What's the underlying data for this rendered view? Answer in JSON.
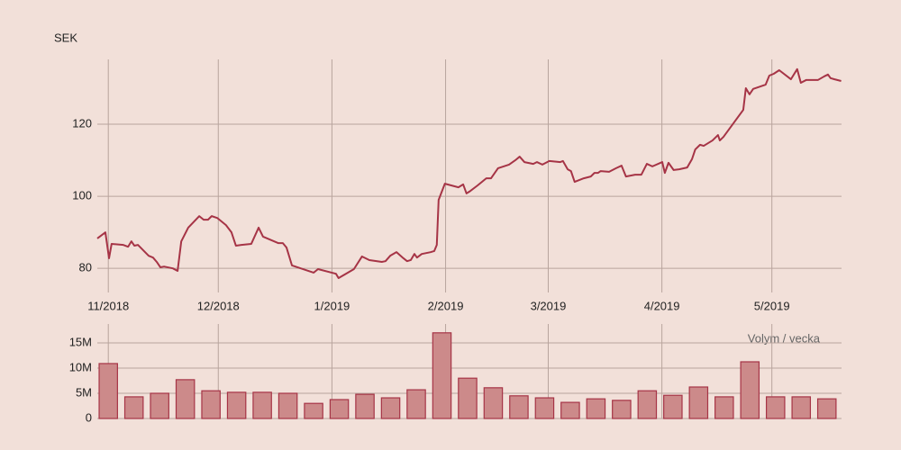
{
  "chart_data": [
    {
      "type": "line",
      "title": "SEK",
      "color": "#a63446",
      "grid": true,
      "xlim": [
        0,
        203
      ],
      "ylim": [
        73.3,
        138
      ],
      "xticks": [
        {
          "value": 3,
          "label": "11/2018"
        },
        {
          "value": 33,
          "label": "12/2018"
        },
        {
          "value": 64,
          "label": "1/2019"
        },
        {
          "value": 95,
          "label": "2/2019"
        },
        {
          "value": 123,
          "label": "3/2019"
        },
        {
          "value": 154,
          "label": "4/2019"
        },
        {
          "value": 184,
          "label": "5/2019"
        }
      ],
      "yticks": [
        80,
        100,
        120
      ],
      "x": [
        0,
        2.2,
        3.2,
        3.9,
        7.1,
        8.4,
        9.3,
        10.1,
        11.1,
        14,
        15.2,
        16.2,
        17.2,
        18.2,
        20.6,
        21.9,
        22.9,
        24.8,
        27.8,
        29,
        30.2,
        31.2,
        32.7,
        35.1,
        36.6,
        37.8,
        39.3,
        42,
        44,
        45.2,
        49.4,
        50.6,
        51.6,
        53.1,
        59,
        60.2,
        65.1,
        65.8,
        70,
        72.2,
        74.2,
        77.6,
        78.6,
        79.9,
        81.6,
        83.5,
        84.5,
        85.5,
        86.5,
        87.2,
        88.5,
        90.9,
        91.9,
        92.6,
        93.1,
        94.8,
        98.5,
        99.8,
        100.7,
        101.5,
        103.7,
        106.1,
        107.4,
        109.3,
        112.3,
        114,
        115.2,
        116.5,
        118.9,
        119.9,
        121.4,
        123.3,
        126.3,
        127,
        128.3,
        129.2,
        130.2,
        132.7,
        134.6,
        135.6,
        136.6,
        137.3,
        139.6,
        141.5,
        143,
        144.2,
        146.7,
        148.4,
        149.9,
        151.4,
        154.1,
        154.8,
        155.8,
        157.2,
        158.7,
        160.9,
        162.2,
        163.1,
        164.4,
        165.4,
        167.8,
        169.3,
        169.8,
        170.8,
        176.2,
        176.9,
        177.9,
        178.9,
        182.3,
        183.3,
        184.5,
        186,
        189.2,
        190.9,
        191.9,
        193.4,
        196.6,
        198.3,
        199.3,
        200,
        201,
        202.9
      ],
      "values": [
        88.3,
        90,
        82.8,
        86.8,
        86.5,
        86,
        87.5,
        86.3,
        86.5,
        83.5,
        83,
        81.8,
        80.3,
        80.5,
        80,
        79.3,
        87.5,
        91.3,
        94.5,
        93.5,
        93.5,
        94.5,
        94,
        92,
        90,
        86.3,
        86.5,
        86.8,
        91.3,
        88.8,
        87,
        87,
        85.8,
        80.8,
        78.8,
        79.8,
        78.5,
        77.3,
        79.8,
        83.3,
        82.3,
        81.8,
        82,
        83.5,
        84.5,
        82.8,
        82,
        82.3,
        84,
        83,
        84,
        84.5,
        84.8,
        86.5,
        99,
        103.5,
        102.5,
        103.3,
        100.8,
        101.3,
        103,
        105,
        105,
        107.8,
        108.8,
        110,
        111,
        109.5,
        109,
        109.5,
        108.8,
        109.8,
        109.5,
        109.8,
        107.5,
        107,
        104,
        105,
        105.5,
        106.5,
        106.5,
        107,
        106.8,
        107.8,
        108.5,
        105.5,
        106,
        106,
        109,
        108.3,
        109.5,
        106.5,
        109.3,
        107.3,
        107.5,
        108,
        110.3,
        113,
        114.3,
        114,
        115.5,
        117,
        115.5,
        116.5,
        124,
        130,
        128.3,
        129.8,
        131,
        133.5,
        134,
        135,
        132.5,
        135.3,
        131.5,
        132.3,
        132.3,
        133.3,
        133.8,
        132.8,
        132.5,
        132
      ]
    },
    {
      "type": "bar",
      "annotation": "Volym / vecka",
      "color": "#cc8a8a",
      "grid": true,
      "xlim": [
        0,
        203
      ],
      "ylim": [
        0,
        18750000
      ],
      "yticks": [
        0,
        {
          "value": 5000000,
          "label": "5M"
        },
        {
          "value": 10000000,
          "label": "10M"
        },
        {
          "value": 15000000,
          "label": "15M"
        }
      ],
      "x": [
        3,
        10,
        17,
        24,
        31,
        38,
        45,
        52,
        59,
        66,
        73,
        80,
        87,
        94,
        101,
        108,
        115,
        122,
        129,
        136,
        143,
        150,
        157,
        164,
        171,
        178,
        185,
        192,
        199
      ],
      "values": [
        10900000,
        4300000,
        5000000,
        7700000,
        5500000,
        5200000,
        5200000,
        5000000,
        3000000,
        3750000,
        4800000,
        4100000,
        5700000,
        17000000,
        8000000,
        6100000,
        4500000,
        4100000,
        3200000,
        3900000,
        3600000,
        5500000,
        4600000,
        6250000,
        4300000,
        11250000,
        4300000,
        4300000,
        3900000
      ]
    }
  ]
}
